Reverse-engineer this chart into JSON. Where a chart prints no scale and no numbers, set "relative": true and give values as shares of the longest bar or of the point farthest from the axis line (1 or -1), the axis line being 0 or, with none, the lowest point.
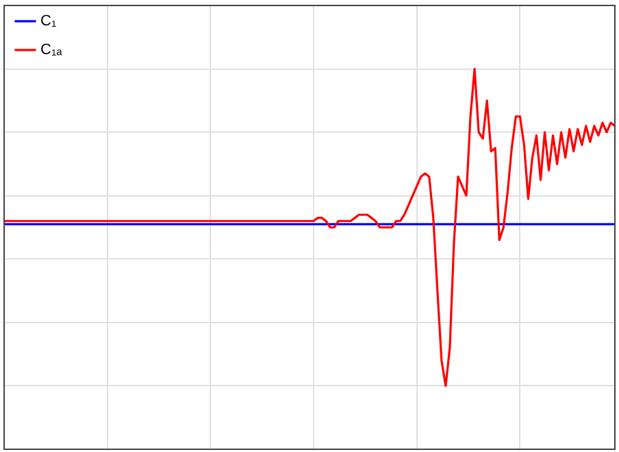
{
  "chart_data": {
    "type": "line",
    "relative": true,
    "grid": true,
    "legend": "top left",
    "marker": "none",
    "line_style": "solid",
    "categories": [
      null,
      null,
      null,
      null,
      null,
      null,
      null,
      null,
      null,
      null,
      null,
      null,
      null,
      null,
      null,
      null,
      null,
      null,
      null,
      null,
      null,
      null,
      null,
      null,
      null,
      null,
      null,
      null,
      null,
      null,
      null,
      null,
      null,
      null,
      null,
      null,
      null,
      null,
      null,
      null,
      null,
      null,
      null,
      null,
      null,
      null,
      null,
      null,
      null,
      null,
      null,
      null,
      null,
      null,
      null,
      null,
      null,
      null,
      null,
      null,
      null,
      null,
      null,
      null,
      null,
      null,
      null,
      null,
      null,
      null,
      null,
      null,
      null,
      null,
      null,
      null,
      null,
      null,
      null,
      null,
      null,
      null,
      null,
      null,
      null,
      null,
      null,
      null,
      null,
      null,
      null,
      null,
      null,
      null,
      null,
      null,
      null,
      null,
      null,
      null,
      null,
      null,
      null,
      null,
      null,
      null,
      null,
      null,
      null,
      null,
      null,
      null,
      null,
      null,
      null,
      null,
      null,
      null,
      null,
      null,
      null,
      null,
      null,
      null,
      null,
      null,
      null,
      null,
      null,
      null,
      null,
      null,
      null,
      null,
      null,
      null,
      null,
      null,
      null,
      null,
      null,
      null,
      null,
      null,
      null,
      null,
      null,
      null,
      null
    ],
    "series": [
      {
        "name": "C₁",
        "color": "#0000ff",
        "values": [
          0.51,
          0.51,
          0.51,
          0.51,
          0.51,
          0.51,
          0.51,
          0.51,
          0.51,
          0.51,
          0.51,
          0.51,
          0.51,
          0.51,
          0.51,
          0.51,
          0.51,
          0.51,
          0.51,
          0.51,
          0.51,
          0.51,
          0.51,
          0.51,
          0.51,
          0.51,
          0.51,
          0.51,
          0.51,
          0.51,
          0.51,
          0.51,
          0.51,
          0.51,
          0.51,
          0.51,
          0.51,
          0.51,
          0.51,
          0.51,
          0.51,
          0.51,
          0.51,
          0.51,
          0.51,
          0.51,
          0.51,
          0.51,
          0.51,
          0.51,
          0.51,
          0.51,
          0.51,
          0.51,
          0.51,
          0.51,
          0.51,
          0.51,
          0.51,
          0.51,
          0.51,
          0.51,
          0.51,
          0.51,
          0.51,
          0.51,
          0.51,
          0.51,
          0.51,
          0.51,
          0.51,
          0.51,
          0.51,
          0.51,
          0.51,
          0.51,
          0.51,
          0.51,
          0.51,
          0.51,
          0.51,
          0.51,
          0.51,
          0.51,
          0.51,
          0.51,
          0.51,
          0.51,
          0.51,
          0.51,
          0.51,
          0.51,
          0.51,
          0.51,
          0.51,
          0.51,
          0.51,
          0.51,
          0.51,
          0.51,
          0.51,
          0.51,
          0.51,
          0.51,
          0.51,
          0.51,
          0.51,
          0.51,
          0.51,
          0.51,
          0.51,
          0.51,
          0.51,
          0.51,
          0.51,
          0.51,
          0.51,
          0.51,
          0.51,
          0.51,
          0.51,
          0.51,
          0.51,
          0.51,
          0.51,
          0.51,
          0.51,
          0.51,
          0.51,
          0.51,
          0.51,
          0.51,
          0.51,
          0.51,
          0.51,
          0.51,
          0.51,
          0.51,
          0.51,
          0.51,
          0.51,
          0.51,
          0.51,
          0.51,
          0.51,
          0.51,
          0.51,
          0.51,
          0.51
        ]
      },
      {
        "name": "C₁ₐ",
        "color": "#ff0000",
        "values": [
          0.52,
          0.52,
          0.52,
          0.52,
          0.52,
          0.52,
          0.52,
          0.52,
          0.52,
          0.52,
          0.52,
          0.52,
          0.52,
          0.52,
          0.52,
          0.52,
          0.52,
          0.52,
          0.52,
          0.52,
          0.52,
          0.52,
          0.52,
          0.52,
          0.52,
          0.52,
          0.52,
          0.52,
          0.52,
          0.52,
          0.52,
          0.52,
          0.52,
          0.52,
          0.52,
          0.52,
          0.52,
          0.52,
          0.52,
          0.52,
          0.52,
          0.52,
          0.52,
          0.52,
          0.52,
          0.52,
          0.52,
          0.52,
          0.52,
          0.52,
          0.52,
          0.52,
          0.52,
          0.52,
          0.52,
          0.52,
          0.52,
          0.52,
          0.52,
          0.52,
          0.52,
          0.52,
          0.52,
          0.52,
          0.52,
          0.52,
          0.52,
          0.52,
          0.52,
          0.52,
          0.52,
          0.52,
          0.52,
          0.52,
          0.52,
          0.52,
          0.53,
          0.53,
          0.52,
          0.5,
          0.5,
          0.52,
          0.52,
          0.52,
          0.52,
          0.53,
          0.54,
          0.54,
          0.54,
          0.53,
          0.52,
          0.5,
          0.5,
          0.5,
          0.5,
          0.52,
          0.52,
          0.54,
          0.57,
          0.6,
          0.63,
          0.66,
          0.67,
          0.66,
          0.53,
          0.3,
          0.08,
          0.0,
          0.12,
          0.45,
          0.66,
          0.63,
          0.6,
          0.85,
          1.0,
          0.8,
          0.78,
          0.9,
          0.74,
          0.75,
          0.46,
          0.5,
          0.61,
          0.75,
          0.85,
          0.85,
          0.76,
          0.59,
          0.72,
          0.79,
          0.65,
          0.8,
          0.68,
          0.79,
          0.7,
          0.8,
          0.72,
          0.81,
          0.74,
          0.81,
          0.76,
          0.82,
          0.77,
          0.82,
          0.79,
          0.83,
          0.8,
          0.83,
          0.82
        ]
      }
    ]
  }
}
